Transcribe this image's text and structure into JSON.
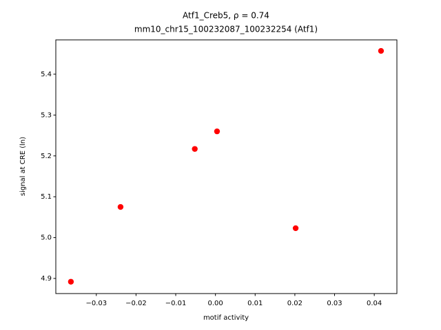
{
  "chart_data": {
    "type": "scatter",
    "title": "Atf1_Creb5, ρ = 0.74",
    "subtitle": "mm10_chr15_100232087_100232254 (Atf1)",
    "x_label": "motif activity",
    "y_label": "signal at CRE (ln)",
    "color": "#ff0000",
    "x": [
      -0.0364,
      -0.0239,
      -0.0052,
      0.0004,
      0.0202,
      0.0417
    ],
    "values": [
      4.892,
      5.075,
      5.217,
      5.26,
      5.023,
      5.457
    ],
    "xlim": [
      -0.0402,
      0.0457
    ],
    "ylim": [
      4.863,
      5.484
    ],
    "xticks": [
      {
        "value": -0.03,
        "label": "−0.03"
      },
      {
        "value": -0.02,
        "label": "−0.02"
      },
      {
        "value": -0.01,
        "label": "−0.01"
      },
      {
        "value": 0,
        "label": "0.00"
      },
      0.01,
      0.02,
      0.03,
      0.04
    ],
    "yticks": [
      4.9,
      {
        "value": 5,
        "label": "5.0"
      },
      5.1,
      5.2,
      5.3,
      5.4
    ]
  }
}
